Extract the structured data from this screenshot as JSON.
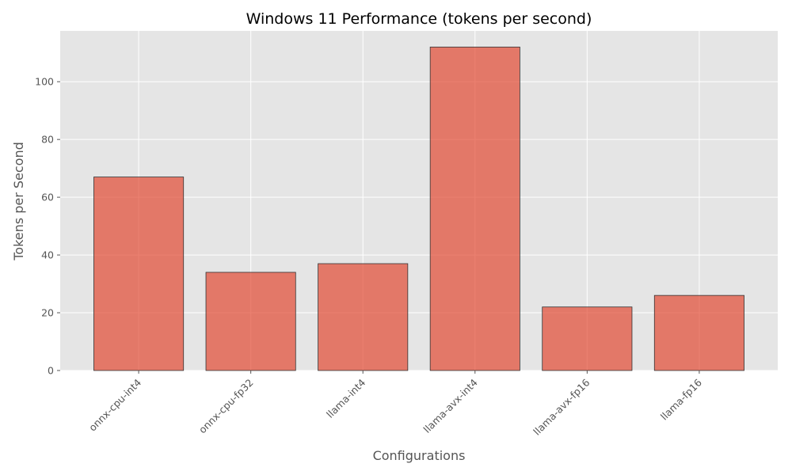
{
  "chart_data": {
    "type": "bar",
    "title": "Windows 11 Performance (tokens per second)",
    "xlabel": "Configurations",
    "ylabel": "Tokens per Second",
    "categories": [
      "onnx-cpu-int4",
      "onnx-cpu-fp32",
      "llama-int4",
      "llama-avx-int4",
      "llama-avx-fp16",
      "llama-fp16"
    ],
    "values": [
      67,
      34,
      37,
      112,
      22,
      26
    ],
    "ylim": [
      0,
      117.6
    ],
    "yticks": [
      0,
      20,
      40,
      60,
      80,
      100
    ],
    "grid": true,
    "legend": "none",
    "colors": {
      "bar": "#E24A33",
      "bar_edge": "#333333",
      "plot_background": "#E5E5E5",
      "grid": "#FFFFFF"
    }
  }
}
